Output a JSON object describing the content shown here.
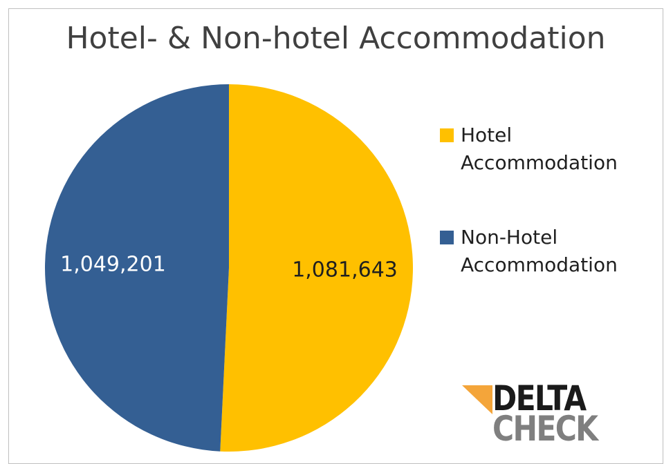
{
  "chart_data": {
    "type": "pie",
    "title": "Hotel- & Non-hotel Accommodation",
    "categories": [
      "Hotel Accommodation",
      "Non-Hotel Accommodation"
    ],
    "values": [
      1081643,
      1049201
    ],
    "value_labels": [
      "1,081,643",
      "1,049,201"
    ],
    "colors": [
      "#ffc000",
      "#345f93"
    ],
    "label_colors": [
      "#1f1f1f",
      "#ffffff"
    ],
    "legend": "right"
  },
  "logo": {
    "line1": "DELTA",
    "line2": "CHECK"
  }
}
